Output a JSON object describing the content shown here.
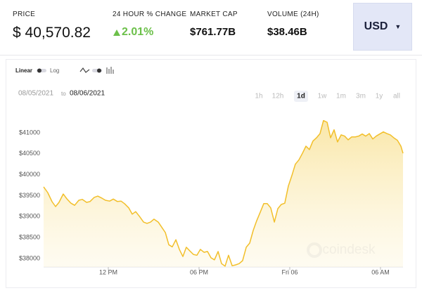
{
  "header": {
    "price_label": "PRICE",
    "price": "$ 40,570.82",
    "change_label": "24 HOUR % CHANGE",
    "change": "2.01%",
    "market_cap_label": "MARKET CAP",
    "market_cap": "$761.77B",
    "volume_label": "VOLUME (24H)",
    "volume": "$38.46B",
    "currency": "USD"
  },
  "controls": {
    "scale_linear": "Linear",
    "scale_log": "Log",
    "date_from": "08/05/2021",
    "date_sep": "to",
    "date_to": "08/06/2021",
    "ranges": [
      "1h",
      "12h",
      "1d",
      "1w",
      "1m",
      "3m",
      "1y",
      "all"
    ],
    "active_range": 2
  },
  "watermark": "coindesk",
  "chart_data": {
    "type": "area-line",
    "color": "#f2bf2a",
    "grid": false,
    "x": [
      7.72,
      7.99,
      8.28,
      8.51,
      8.74,
      9.02,
      9.26,
      9.53,
      9.77,
      10.05,
      10.28,
      10.56,
      10.79,
      11.07,
      11.3,
      11.58,
      11.81,
      12.09,
      12.33,
      12.6,
      12.84,
      13.07,
      13.35,
      13.58,
      13.81,
      14.05,
      14.33,
      14.56,
      14.79,
      15.02,
      15.3,
      15.53,
      15.77,
      16.0,
      16.23,
      16.47,
      16.7,
      16.93,
      17.16,
      17.4,
      17.63,
      17.86,
      18.09,
      18.33,
      18.56,
      18.79,
      19.02,
      19.26,
      19.49,
      19.72,
      19.95,
      20.19,
      20.42,
      20.65,
      20.88,
      21.12,
      21.35,
      21.58,
      21.81,
      22.05,
      22.28,
      22.51,
      22.74,
      22.98,
      23.21,
      23.44,
      23.67,
      23.91,
      24.14,
      24.37,
      24.6,
      24.84,
      25.07,
      25.3,
      25.53,
      25.77,
      26.0,
      26.23,
      26.47,
      26.7,
      26.93,
      27.16,
      27.4,
      27.63,
      27.86,
      28.09,
      28.33,
      28.56,
      28.79,
      29.02,
      29.26,
      29.49,
      29.72,
      29.95,
      30.19,
      30.42,
      30.65,
      30.88,
      31.12,
      31.35,
      31.49
    ],
    "values": [
      39710,
      39575,
      39358,
      39240,
      39340,
      39540,
      39425,
      39320,
      39270,
      39390,
      39410,
      39340,
      39360,
      39460,
      39490,
      39440,
      39390,
      39370,
      39420,
      39360,
      39370,
      39310,
      39210,
      39060,
      39120,
      39010,
      38870,
      38840,
      38870,
      38940,
      38870,
      38750,
      38620,
      38330,
      38280,
      38450,
      38220,
      38050,
      38270,
      38180,
      38100,
      38080,
      38220,
      38150,
      38170,
      38020,
      37970,
      38170,
      37880,
      37820,
      38080,
      37830,
      37850,
      37880,
      37950,
      38270,
      38370,
      38670,
      38900,
      39110,
      39310,
      39310,
      39210,
      38870,
      39190,
      39290,
      39320,
      39730,
      39980,
      40250,
      40350,
      40510,
      40680,
      40600,
      40800,
      40880,
      40980,
      41290,
      41250,
      40880,
      41070,
      40780,
      40950,
      40920,
      40830,
      40900,
      40900,
      40920,
      40970,
      40920,
      40980,
      40850,
      40920,
      40970,
      41020,
      40980,
      40950,
      40880,
      40820,
      40680,
      40510
    ],
    "xlim": [
      7.72,
      31.49
    ],
    "xticks": [
      {
        "value": 12,
        "label": "12 PM"
      },
      {
        "value": 18,
        "label": "06 PM"
      },
      {
        "value": 24,
        "label": "Fri 06"
      },
      {
        "value": 30,
        "label": "06 AM"
      }
    ],
    "ylim": [
      37800,
      41400
    ],
    "yticks": [
      {
        "value": 38000,
        "label": "$38000"
      },
      {
        "value": 38500,
        "label": "$38500"
      },
      {
        "value": 39000,
        "label": "$39000"
      },
      {
        "value": 39500,
        "label": "$39500"
      },
      {
        "value": 40000,
        "label": "$40000"
      },
      {
        "value": 40500,
        "label": "$40500"
      },
      {
        "value": 41000,
        "label": "$41000"
      }
    ]
  }
}
